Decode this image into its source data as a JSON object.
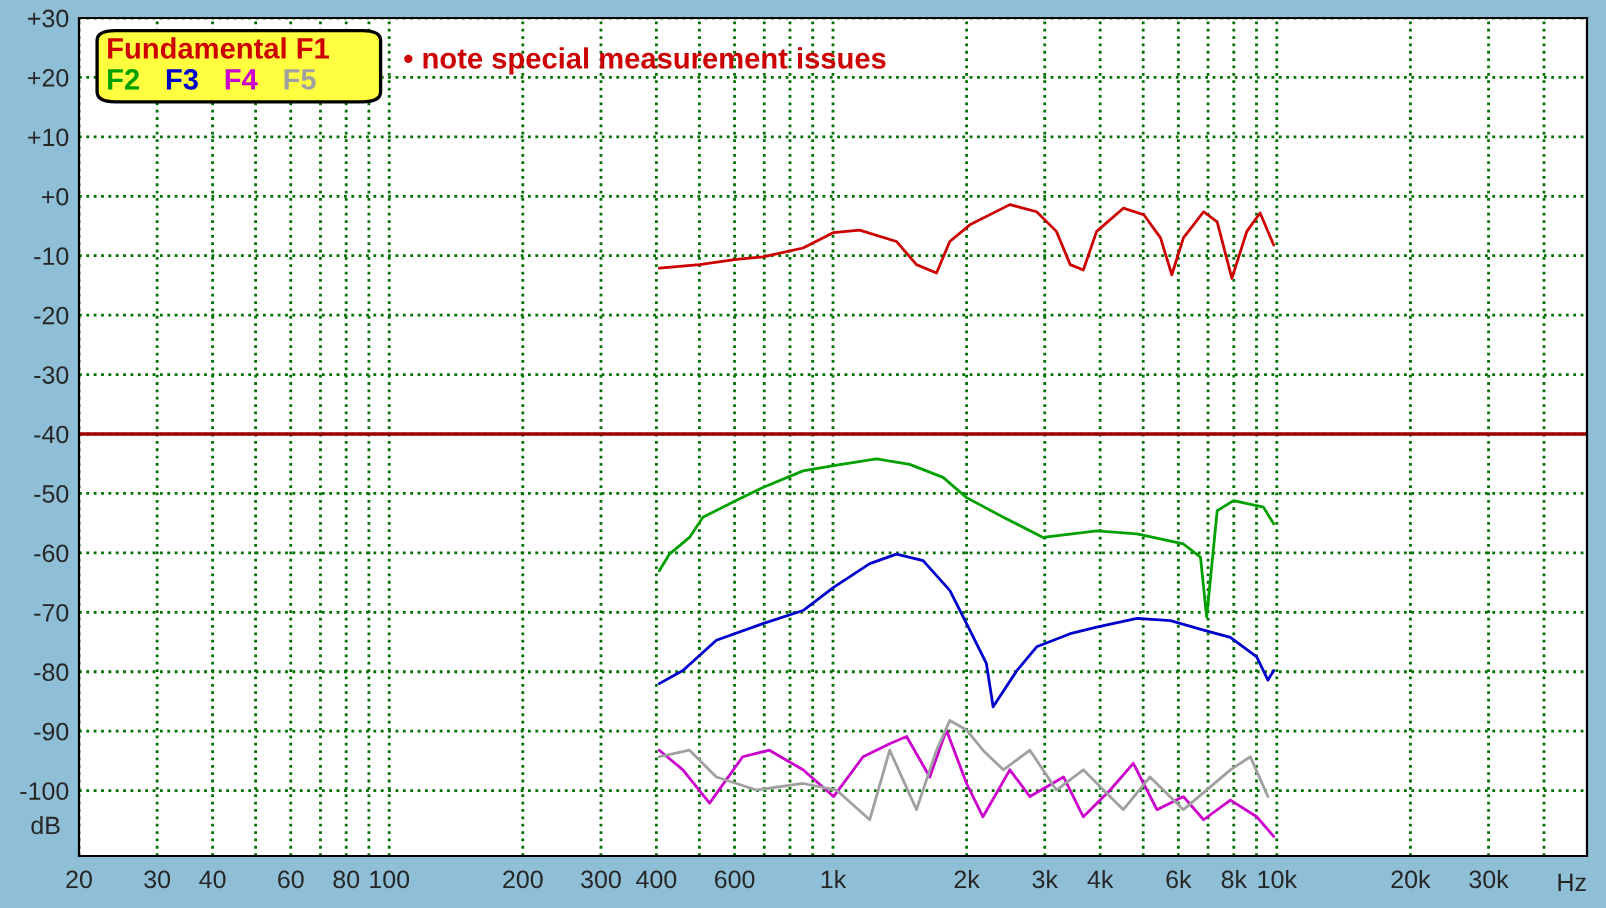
{
  "chart_data": {
    "type": "line",
    "xlabel": "Hz",
    "ylabel": "dB",
    "log": "x",
    "grid": true,
    "legend": "top left",
    "line_style": "solid",
    "marker": "none",
    "annotations": [
      "• note special measurement issues"
    ],
    "xlim": [
      20,
      50000
    ],
    "ylim": [
      -111,
      30
    ],
    "xticks": [
      20,
      30,
      40,
      {
        "value": 50,
        "label": null
      },
      60,
      {
        "value": 70,
        "label": null
      },
      80,
      {
        "value": 90,
        "label": null
      },
      100,
      200,
      300,
      400,
      {
        "value": 500,
        "label": null
      },
      600,
      {
        "value": 700,
        "label": null
      },
      {
        "value": 800,
        "label": null
      },
      {
        "value": 900,
        "label": null
      },
      {
        "value": 1000,
        "label": "1k"
      },
      {
        "value": 2000,
        "label": "2k"
      },
      {
        "value": 3000,
        "label": "3k"
      },
      {
        "value": 4000,
        "label": "4k"
      },
      {
        "value": 5000,
        "label": null
      },
      {
        "value": 6000,
        "label": "6k"
      },
      {
        "value": 7000,
        "label": null
      },
      {
        "value": 8000,
        "label": "8k"
      },
      {
        "value": 9000,
        "label": null
      },
      {
        "value": 10000,
        "label": "10k"
      },
      {
        "value": 20000,
        "label": "20k"
      },
      {
        "value": 30000,
        "label": "30k"
      },
      {
        "value": 40000,
        "label": null
      }
    ],
    "yticks": [
      {
        "value": 30,
        "label": "+30"
      },
      {
        "value": 20,
        "label": "+20"
      },
      {
        "value": 10,
        "label": "+10"
      },
      {
        "value": 0,
        "label": "+0"
      },
      {
        "value": -10,
        "label": "-10"
      },
      {
        "value": -20,
        "label": "-20"
      },
      {
        "value": -30,
        "label": "-30"
      },
      {
        "value": -40,
        "label": "-40"
      },
      {
        "value": -50,
        "label": "-50"
      },
      {
        "value": -60,
        "label": "-60"
      },
      {
        "value": -70,
        "label": "-70"
      },
      {
        "value": -80,
        "label": "-80"
      },
      {
        "value": -90,
        "label": "-90"
      },
      {
        "value": -100,
        "label": "-100"
      }
    ],
    "ref_lines": [
      {
        "axis": "y",
        "value": -40,
        "label": null,
        "color": "#a00000",
        "line_style": "solid"
      }
    ],
    "series": [
      {
        "name": "Fundamental F1",
        "color": "#cc0000",
        "x": [
          406,
          500,
          605,
          695,
          856,
          1003,
          1148,
          1390,
          1542,
          1711,
          1833,
          2034,
          2503,
          2877,
          3187,
          3424,
          3665,
          3927,
          4510,
          5017,
          5470,
          5800,
          6160,
          6840,
          7340,
          7920,
          8560,
          9170,
          9840
        ],
        "values": [
          -12.1,
          -11.5,
          -10.6,
          -10.2,
          -8.7,
          -6.1,
          -5.7,
          -7.6,
          -11.5,
          -12.9,
          -7.6,
          -4.8,
          -1.4,
          -2.6,
          -5.9,
          -11.5,
          -12.4,
          -5.9,
          -2.0,
          -3.1,
          -7.0,
          -13.2,
          -7.0,
          -2.6,
          -4.3,
          -13.8,
          -5.9,
          -2.8,
          -8.2
        ]
      },
      {
        "name": "F2",
        "color": "#00a000",
        "x": [
          406,
          428,
          475,
          509,
          605,
          695,
          856,
          1003,
          1253,
          1489,
          1770,
          2000,
          2420,
          2975,
          3927,
          4840,
          6160,
          6730,
          6950,
          7340,
          7990,
          9330,
          9840
        ],
        "values": [
          -63.0,
          -60.2,
          -57.4,
          -54.0,
          -51.2,
          -49.0,
          -46.2,
          -45.3,
          -44.2,
          -45.1,
          -47.3,
          -50.7,
          -54.0,
          -57.4,
          -56.3,
          -56.8,
          -58.5,
          -60.7,
          -70.8,
          -52.9,
          -51.2,
          -52.3,
          -55.1
        ]
      },
      {
        "name": "F3",
        "color": "#0000cc",
        "x": [
          406,
          459,
          546,
          695,
          856,
          1003,
          1210,
          1390,
          1596,
          1833,
          2000,
          2216,
          2295,
          2596,
          2877,
          3424,
          3927,
          4840,
          5760,
          6840,
          7860,
          9010,
          9550,
          9840
        ],
        "values": [
          -82.0,
          -79.8,
          -74.7,
          -71.9,
          -69.7,
          -65.8,
          -61.8,
          -60.2,
          -61.3,
          -66.3,
          -71.9,
          -78.6,
          -85.9,
          -79.8,
          -75.8,
          -73.6,
          -72.5,
          -71.0,
          -71.4,
          -73.0,
          -74.2,
          -77.5,
          -81.4,
          -79.8
        ]
      },
      {
        "name": "F4",
        "color": "#cc00cc",
        "x": [
          406,
          459,
          527,
          626,
          719,
          856,
          1003,
          1169,
          1342,
          1465,
          1652,
          1801,
          2000,
          2177,
          2503,
          2778,
          3307,
          3665,
          4213,
          4750,
          5370,
          6160,
          6840,
          7860,
          9010,
          9840
        ],
        "values": [
          -93.2,
          -96.5,
          -102.1,
          -94.3,
          -93.2,
          -96.5,
          -101.0,
          -94.3,
          -92.1,
          -90.9,
          -97.7,
          -89.8,
          -98.8,
          -104.4,
          -96.5,
          -101.0,
          -97.7,
          -104.4,
          -99.9,
          -95.4,
          -103.2,
          -101.0,
          -104.9,
          -101.6,
          -104.4,
          -107.7
        ]
      },
      {
        "name": "F5",
        "color": "#a0a0a0",
        "x": [
          406,
          475,
          546,
          672,
          856,
          1018,
          1210,
          1342,
          1542,
          1711,
          1833,
          2000,
          2177,
          2420,
          2778,
          3187,
          3665,
          4510,
          5180,
          6160,
          7860,
          8720,
          9550
        ],
        "values": [
          -94.3,
          -93.2,
          -97.7,
          -99.9,
          -98.8,
          -99.9,
          -104.9,
          -93.2,
          -103.2,
          -93.2,
          -88.2,
          -89.8,
          -93.2,
          -96.5,
          -93.2,
          -99.9,
          -96.5,
          -103.2,
          -97.7,
          -103.2,
          -96.5,
          -94.3,
          -101.0
        ]
      }
    ]
  }
}
